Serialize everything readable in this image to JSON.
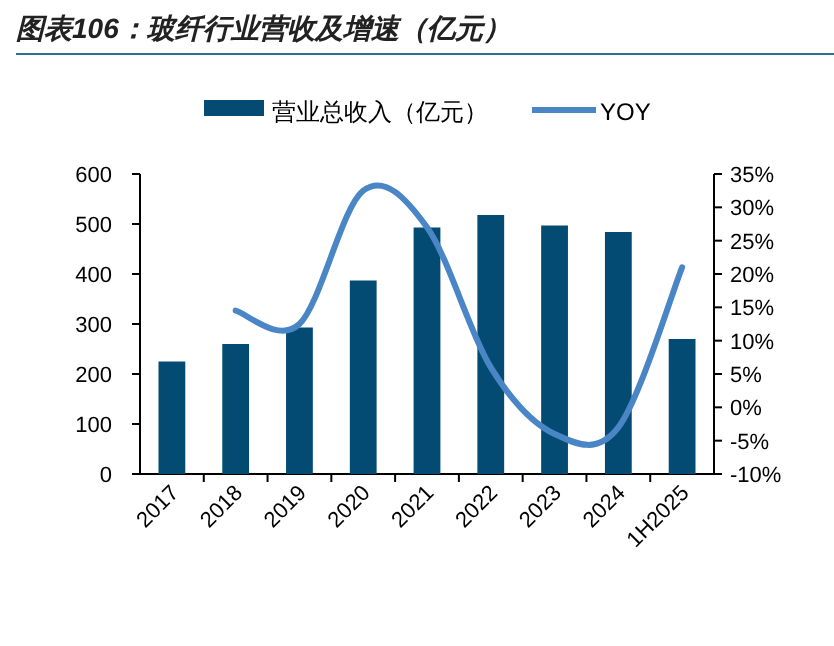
{
  "chart_data": {
    "type": "bar",
    "title": "图表106：玻纤行业营收及增速（亿元）",
    "categories": [
      "2017",
      "2018",
      "2019",
      "2020",
      "2021",
      "2022",
      "2023",
      "2024",
      "1H2025"
    ],
    "series": [
      {
        "name": "营业总收入（亿元）",
        "color": "#034b72",
        "values": [
          225,
          260,
          293,
          387,
          493,
          518,
          497,
          484,
          270
        ]
      },
      {
        "name": "YOY",
        "type": "line",
        "axis": "y2",
        "color": "#4a86c5",
        "values": [
          null,
          14.5,
          12.5,
          32.5,
          27,
          6,
          -4,
          -3,
          21
        ]
      }
    ],
    "ylim": [
      0,
      600
    ],
    "yticks": [
      0,
      100,
      200,
      300,
      400,
      500,
      600
    ],
    "y2lim": [
      -10,
      35
    ],
    "y2ticks": [
      {
        "value": -10,
        "label": "-10%"
      },
      {
        "value": -5,
        "label": "-5%"
      },
      {
        "value": 0,
        "label": "0%"
      },
      {
        "value": 5,
        "label": "5%"
      },
      {
        "value": 10,
        "label": "10%"
      },
      {
        "value": 15,
        "label": "15%"
      },
      {
        "value": 20,
        "label": "20%"
      },
      {
        "value": 25,
        "label": "25%"
      },
      {
        "value": 30,
        "label": "30%"
      },
      {
        "value": 35,
        "label": "35%"
      }
    ],
    "legend": "top",
    "grid": false
  }
}
